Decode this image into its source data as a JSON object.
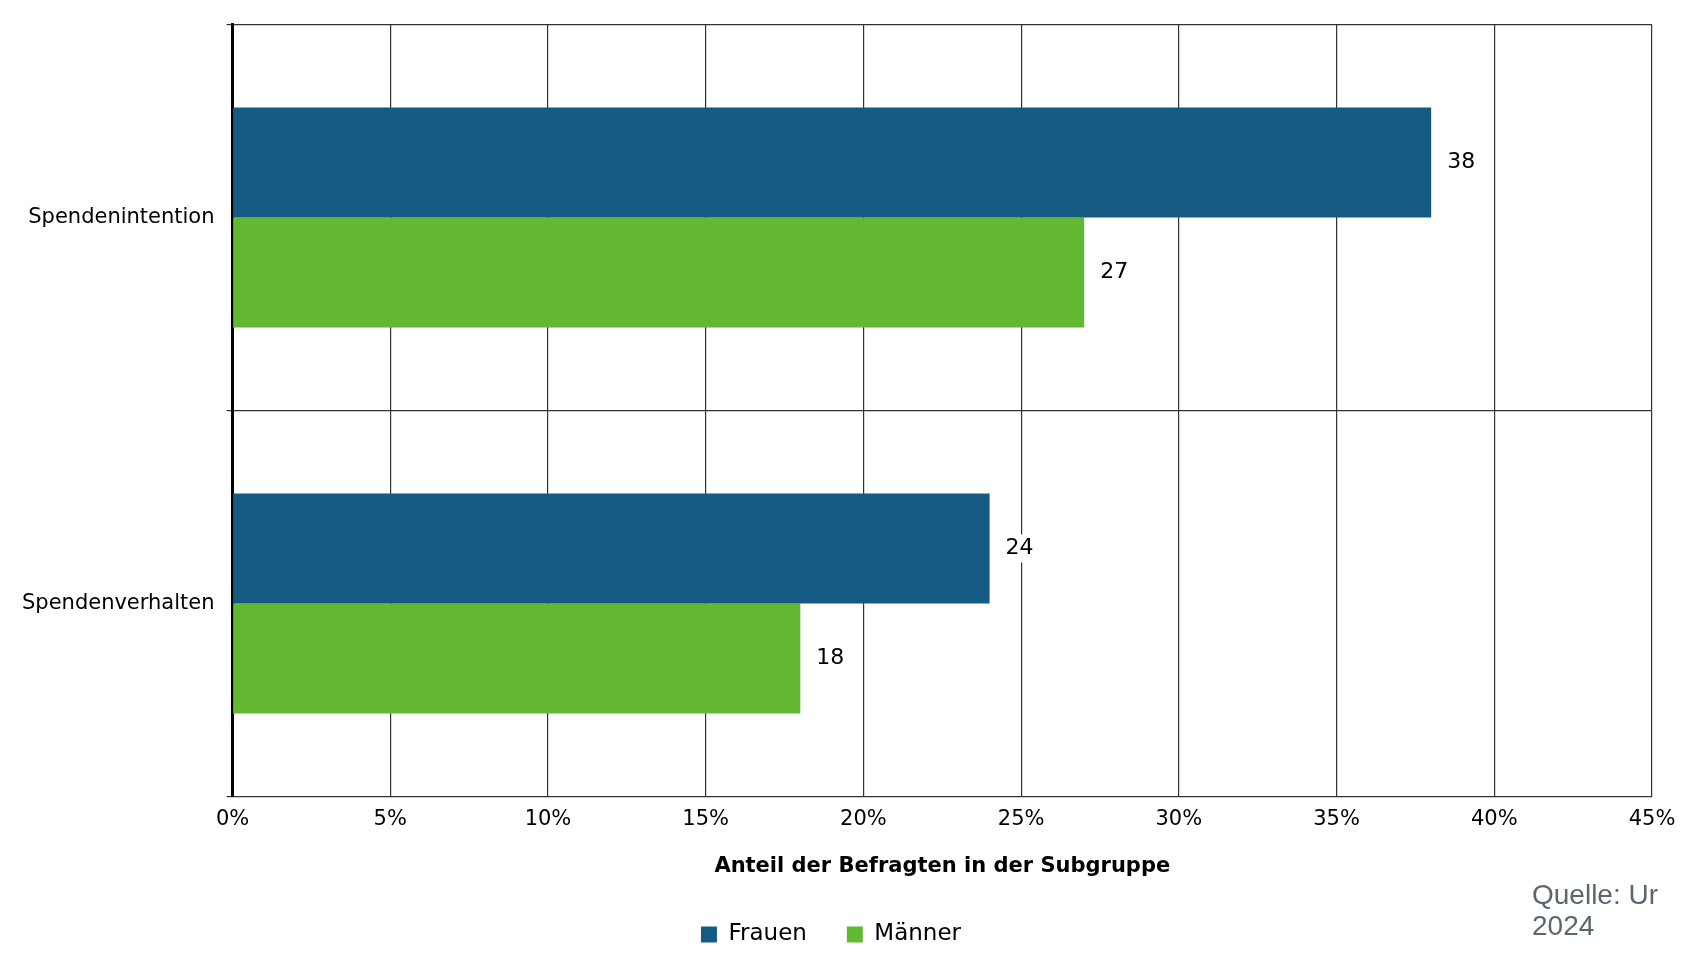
{
  "chart_data": {
    "type": "bar",
    "orientation": "horizontal",
    "categories": [
      "Spendenintention",
      "Spendenverhalten"
    ],
    "series": [
      {
        "name": "Frauen",
        "color": "#155a82",
        "values": [
          38,
          24
        ]
      },
      {
        "name": "Männer",
        "color": "#62b832",
        "values": [
          27,
          18
        ]
      }
    ],
    "xlabel": "Anteil der Befragten in der Subgruppe",
    "xlim": [
      0,
      45
    ],
    "xticks": [
      {
        "value": 0,
        "label": "0%"
      },
      {
        "value": 5,
        "label": "5%"
      },
      {
        "value": 10,
        "label": "10%"
      },
      {
        "value": 15,
        "label": "15%"
      },
      {
        "value": 20,
        "label": "20%"
      },
      {
        "value": 25,
        "label": "25%"
      },
      {
        "value": 30,
        "label": "30%"
      },
      {
        "value": 35,
        "label": "35%"
      },
      {
        "value": 40,
        "label": "40%"
      },
      {
        "value": 45,
        "label": "45%"
      }
    ],
    "data_labels": true,
    "grid": true,
    "legend": "bottom",
    "annotations": [
      "Quelle: Ur 2024"
    ]
  }
}
